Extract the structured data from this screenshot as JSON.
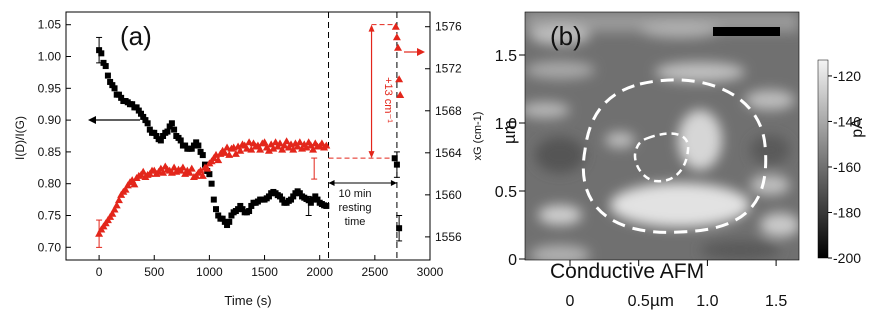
{
  "chart_data": [
    {
      "panel": "(a)",
      "type": "scatter",
      "xlabel": "Time (s)",
      "ylabel_left": "I(D)/I(G)",
      "ylabel_right": "xG (cm-1)",
      "xlim": [
        -300,
        3000
      ],
      "xticks": [
        0,
        500,
        1000,
        1500,
        2000,
        2500,
        3000
      ],
      "ylim_left": [
        0.68,
        1.07
      ],
      "yticks_left": [
        "0.70",
        "0.75",
        "0.80",
        "0.85",
        "0.90",
        "0.95",
        "1.00",
        "1.05"
      ],
      "ylim_right": [
        1553.8,
        1577.4
      ],
      "yticks_right": [
        1556,
        1560,
        1564,
        1568,
        1572,
        1576
      ],
      "series": [
        {
          "marker": "square",
          "color": "#000000",
          "axis": "left",
          "x": [
            0,
            20,
            40,
            60,
            80,
            100,
            120,
            140,
            160,
            180,
            200,
            220,
            240,
            260,
            280,
            300,
            320,
            340,
            360,
            380,
            400,
            420,
            440,
            460,
            480,
            500,
            520,
            540,
            560,
            580,
            600,
            620,
            640,
            660,
            680,
            700,
            720,
            740,
            760,
            780,
            800,
            820,
            840,
            860,
            880,
            900,
            920,
            940,
            960,
            980,
            1000,
            1020,
            1040,
            1060,
            1080,
            1100,
            1120,
            1140,
            1160,
            1180,
            1200,
            1220,
            1240,
            1260,
            1280,
            1300,
            1320,
            1340,
            1360,
            1380,
            1400,
            1420,
            1440,
            1460,
            1480,
            1500,
            1520,
            1540,
            1560,
            1580,
            1600,
            1620,
            1640,
            1660,
            1680,
            1700,
            1720,
            1740,
            1760,
            1780,
            1800,
            1820,
            1840,
            1860,
            1880,
            1900,
            1920,
            1940,
            1960,
            1980,
            2000,
            2020,
            2040,
            2060,
            2680,
            2700,
            2720
          ],
          "y": [
            1.01,
            1.005,
            0.99,
            0.985,
            0.97,
            0.96,
            0.955,
            0.95,
            0.94,
            0.94,
            0.935,
            0.93,
            0.93,
            0.928,
            0.925,
            0.925,
            0.92,
            0.92,
            0.915,
            0.91,
            0.905,
            0.9,
            0.895,
            0.885,
            0.88,
            0.88,
            0.875,
            0.87,
            0.868,
            0.875,
            0.88,
            0.882,
            0.89,
            0.895,
            0.885,
            0.875,
            0.872,
            0.868,
            0.86,
            0.86,
            0.855,
            0.855,
            0.855,
            0.86,
            0.865,
            0.86,
            0.85,
            0.845,
            0.83,
            0.82,
            0.815,
            0.8,
            0.775,
            0.76,
            0.75,
            0.745,
            0.745,
            0.74,
            0.735,
            0.74,
            0.75,
            0.755,
            0.757,
            0.76,
            0.765,
            0.76,
            0.755,
            0.755,
            0.757,
            0.765,
            0.77,
            0.77,
            0.772,
            0.775,
            0.775,
            0.775,
            0.777,
            0.78,
            0.785,
            0.787,
            0.785,
            0.782,
            0.78,
            0.775,
            0.77,
            0.77,
            0.773,
            0.775,
            0.78,
            0.785,
            0.788,
            0.785,
            0.78,
            0.778,
            0.776,
            0.774,
            0.77,
            0.775,
            0.78,
            0.775,
            0.77,
            0.768,
            0.766,
            0.765,
            0.84,
            0.83,
            0.73
          ]
        },
        {
          "marker": "triangle",
          "color": "#e3261b",
          "axis": "right",
          "x": [
            0,
            20,
            40,
            60,
            80,
            100,
            120,
            140,
            160,
            180,
            200,
            220,
            240,
            260,
            280,
            300,
            320,
            340,
            360,
            380,
            400,
            420,
            440,
            460,
            480,
            500,
            520,
            540,
            560,
            580,
            600,
            620,
            640,
            660,
            680,
            700,
            720,
            740,
            760,
            780,
            800,
            820,
            840,
            860,
            880,
            900,
            920,
            940,
            960,
            980,
            1000,
            1020,
            1040,
            1060,
            1080,
            1100,
            1120,
            1140,
            1160,
            1180,
            1200,
            1220,
            1240,
            1260,
            1280,
            1300,
            1320,
            1340,
            1360,
            1380,
            1400,
            1420,
            1440,
            1460,
            1480,
            1500,
            1520,
            1540,
            1560,
            1580,
            1600,
            1620,
            1640,
            1660,
            1680,
            1700,
            1720,
            1740,
            1760,
            1780,
            1800,
            1820,
            1840,
            1860,
            1880,
            1900,
            1920,
            1940,
            1960,
            1980,
            2000,
            2020,
            2040,
            2060,
            2690,
            2700,
            2710,
            2720,
            2730
          ],
          "y": [
            1556.3,
            1556.7,
            1557.0,
            1557.3,
            1557.6,
            1557.9,
            1558.2,
            1558.6,
            1559.0,
            1559.5,
            1560.0,
            1560.3,
            1560.5,
            1560.9,
            1561.2,
            1561.4,
            1561.0,
            1561.6,
            1561.8,
            1561.9,
            1562.2,
            1561.7,
            1561.9,
            1562.0,
            1562.3,
            1562.3,
            1562.0,
            1562.2,
            1562.5,
            1562.1,
            1562.7,
            1562.4,
            1562.3,
            1562.1,
            1562.6,
            1562.2,
            1562.4,
            1562.3,
            1562.6,
            1562.0,
            1562.3,
            1562.1,
            1562.5,
            1561.7,
            1561.8,
            1562.1,
            1562.3,
            1561.8,
            1562.6,
            1562.5,
            1563.0,
            1563.2,
            1563.5,
            1563.8,
            1563.3,
            1563.9,
            1564.2,
            1564.0,
            1564.5,
            1563.8,
            1564.4,
            1564.5,
            1563.9,
            1564.6,
            1564.2,
            1564.8,
            1564.7,
            1564.4,
            1565.0,
            1564.3,
            1564.9,
            1564.6,
            1564.7,
            1564.3,
            1564.9,
            1565.0,
            1564.5,
            1564.2,
            1564.8,
            1564.4,
            1565.0,
            1564.6,
            1564.9,
            1564.3,
            1564.7,
            1565.1,
            1564.5,
            1564.8,
            1564.3,
            1564.9,
            1564.6,
            1565.0,
            1564.4,
            1564.8,
            1564.5,
            1565.0,
            1564.7,
            1564.3,
            1564.9,
            1564.6,
            1564.6,
            1564.9,
            1564.5,
            1564.7,
            1576.0,
            1575.0,
            1574.0,
            1571.0,
            1569.5
          ]
        }
      ],
      "annotations": {
        "panel_label": "(a)",
        "resting_line1": "10 min",
        "resting_line2": "resting",
        "resting_line3": "time",
        "shift_label": "+13 cm⁻¹"
      }
    },
    {
      "panel": "(b)",
      "type": "heatmap",
      "xlabel": "µm",
      "ylabel": "µm",
      "colorbar_label": "pA",
      "xticks": [
        "0",
        "0.5",
        "1.0",
        "1.5"
      ],
      "yticks": [
        "0",
        "0.5",
        "1.0",
        "1.5"
      ],
      "colorbar_ticks": [
        "-120",
        "-140",
        "-160",
        "-180",
        "-200"
      ],
      "colorbar_range": [
        -200,
        -113
      ],
      "overlay_text": "Conductive AFM",
      "panel_label": "(b)"
    }
  ]
}
